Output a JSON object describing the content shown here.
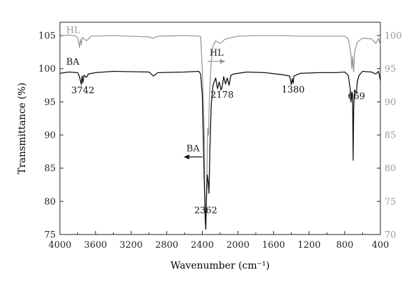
{
  "chart_data": {
    "type": "line",
    "title": "",
    "xlabel": "Wavenumber (cm⁻¹)",
    "ylabel_left": "Transmittance (%)",
    "ylabel_right": "",
    "xlim": [
      4000,
      400
    ],
    "ylim_left": [
      75,
      107
    ],
    "ylim_right": [
      70,
      102
    ],
    "x_ticks": [
      4000,
      3600,
      3200,
      2800,
      2400,
      2000,
      1600,
      1200,
      800,
      400
    ],
    "y_ticks_left": [
      75,
      80,
      85,
      90,
      95,
      100,
      105
    ],
    "y_ticks_right": [
      70,
      75,
      80,
      85,
      90,
      95,
      100
    ],
    "grid": false,
    "series": [
      {
        "name": "HL",
        "axis": "right",
        "color": "#999999",
        "points": [
          [
            4000,
            99.9
          ],
          [
            3900,
            100.1
          ],
          [
            3820,
            99.9
          ],
          [
            3800,
            99.6
          ],
          [
            3780,
            98.2
          ],
          [
            3770,
            99.4
          ],
          [
            3760,
            98.6
          ],
          [
            3750,
            99.7
          ],
          [
            3700,
            99.2
          ],
          [
            3650,
            99.9
          ],
          [
            3400,
            100.0
          ],
          [
            3000,
            99.8
          ],
          [
            2950,
            99.6
          ],
          [
            2900,
            99.9
          ],
          [
            2600,
            100.0
          ],
          [
            2420,
            99.9
          ],
          [
            2400,
            95.0
          ],
          [
            2380,
            86.0
          ],
          [
            2370,
            72.0
          ],
          [
            2360,
            70.9
          ],
          [
            2350,
            78.0
          ],
          [
            2340,
            86.0
          ],
          [
            2330,
            85.0
          ],
          [
            2320,
            91.0
          ],
          [
            2300,
            96.0
          ],
          [
            2280,
            98.5
          ],
          [
            2250,
            99.2
          ],
          [
            2200,
            98.8
          ],
          [
            2150,
            99.4
          ],
          [
            2100,
            99.6
          ],
          [
            2000,
            99.9
          ],
          [
            1800,
            100.0
          ],
          [
            1500,
            100.0
          ],
          [
            1300,
            99.9
          ],
          [
            1000,
            99.9
          ],
          [
            800,
            99.9
          ],
          [
            760,
            99.5
          ],
          [
            740,
            98.0
          ],
          [
            730,
            97.0
          ],
          [
            720,
            95.0
          ],
          [
            712,
            96.8
          ],
          [
            700,
            94.5
          ],
          [
            690,
            97.5
          ],
          [
            660,
            99.0
          ],
          [
            600,
            99.6
          ],
          [
            500,
            99.5
          ],
          [
            450,
            98.8
          ],
          [
            420,
            99.6
          ],
          [
            400,
            98.5
          ]
        ]
      },
      {
        "name": "BA",
        "axis": "left",
        "color": "#111111",
        "points": [
          [
            4000,
            99.3
          ],
          [
            3900,
            99.5
          ],
          [
            3800,
            99.4
          ],
          [
            3780,
            98.8
          ],
          [
            3760,
            97.6
          ],
          [
            3750,
            98.9
          ],
          [
            3742,
            97.9
          ],
          [
            3730,
            99.0
          ],
          [
            3700,
            98.7
          ],
          [
            3680,
            99.2
          ],
          [
            3600,
            99.4
          ],
          [
            3400,
            99.6
          ],
          [
            3000,
            99.5
          ],
          [
            2950,
            98.9
          ],
          [
            2900,
            99.4
          ],
          [
            2600,
            99.5
          ],
          [
            2440,
            99.6
          ],
          [
            2420,
            99.2
          ],
          [
            2400,
            96.0
          ],
          [
            2390,
            90.0
          ],
          [
            2380,
            84.0
          ],
          [
            2370,
            79.0
          ],
          [
            2362,
            75.8
          ],
          [
            2355,
            80.0
          ],
          [
            2345,
            84.0
          ],
          [
            2335,
            83.0
          ],
          [
            2325,
            81.2
          ],
          [
            2315,
            88.0
          ],
          [
            2300,
            94.5
          ],
          [
            2280,
            97.5
          ],
          [
            2250,
            98.6
          ],
          [
            2230,
            97.0
          ],
          [
            2210,
            98.0
          ],
          [
            2190,
            96.8
          ],
          [
            2178,
            97.2
          ],
          [
            2160,
            98.8
          ],
          [
            2140,
            97.7
          ],
          [
            2120,
            98.6
          ],
          [
            2100,
            97.5
          ],
          [
            2080,
            99.0
          ],
          [
            2050,
            99.2
          ],
          [
            1900,
            99.5
          ],
          [
            1700,
            99.4
          ],
          [
            1500,
            99.1
          ],
          [
            1420,
            98.9
          ],
          [
            1400,
            97.6
          ],
          [
            1390,
            98.5
          ],
          [
            1380,
            97.8
          ],
          [
            1370,
            98.9
          ],
          [
            1300,
            99.3
          ],
          [
            1100,
            99.4
          ],
          [
            900,
            99.4
          ],
          [
            800,
            99.5
          ],
          [
            760,
            99.0
          ],
          [
            740,
            97.0
          ],
          [
            730,
            95.0
          ],
          [
            720,
            96.5
          ],
          [
            712,
            96.0
          ],
          [
            706,
            86.2
          ],
          [
            700,
            94.0
          ],
          [
            690,
            96.8
          ],
          [
            669,
            96.3
          ],
          [
            660,
            98.0
          ],
          [
            640,
            99.0
          ],
          [
            600,
            99.6
          ],
          [
            500,
            99.5
          ],
          [
            450,
            99.2
          ],
          [
            420,
            99.6
          ],
          [
            400,
            98.2
          ]
        ]
      }
    ],
    "annotations": [
      {
        "text": "HL",
        "x": 3930,
        "axis": "right",
        "y": 100.4,
        "color": "#999999"
      },
      {
        "text": "BA",
        "x": 3930,
        "axis": "left",
        "y": 100.6,
        "color": "#111111"
      },
      {
        "text": "3742",
        "x": 3742,
        "axis": "left",
        "y": 96.3,
        "color": "#111111"
      },
      {
        "text": "2178",
        "x": 2178,
        "axis": "left",
        "y": 95.6,
        "color": "#111111"
      },
      {
        "text": "1380",
        "x": 1380,
        "axis": "left",
        "y": 96.4,
        "color": "#111111"
      },
      {
        "text": "669",
        "x": 669,
        "axis": "left",
        "y": 95.4,
        "color": "#111111"
      },
      {
        "text": "2362",
        "x": 2362,
        "axis": "left",
        "y": 78.2,
        "color": "#111111"
      }
    ],
    "arrows": [
      {
        "label": "HL",
        "from": 2340,
        "to": 2140,
        "axis": "right",
        "y": 96.1,
        "color": "#999999"
      },
      {
        "label": "BA",
        "from": 2400,
        "to": 2610,
        "axis": "left",
        "y": 86.7,
        "color": "#111111"
      }
    ]
  }
}
